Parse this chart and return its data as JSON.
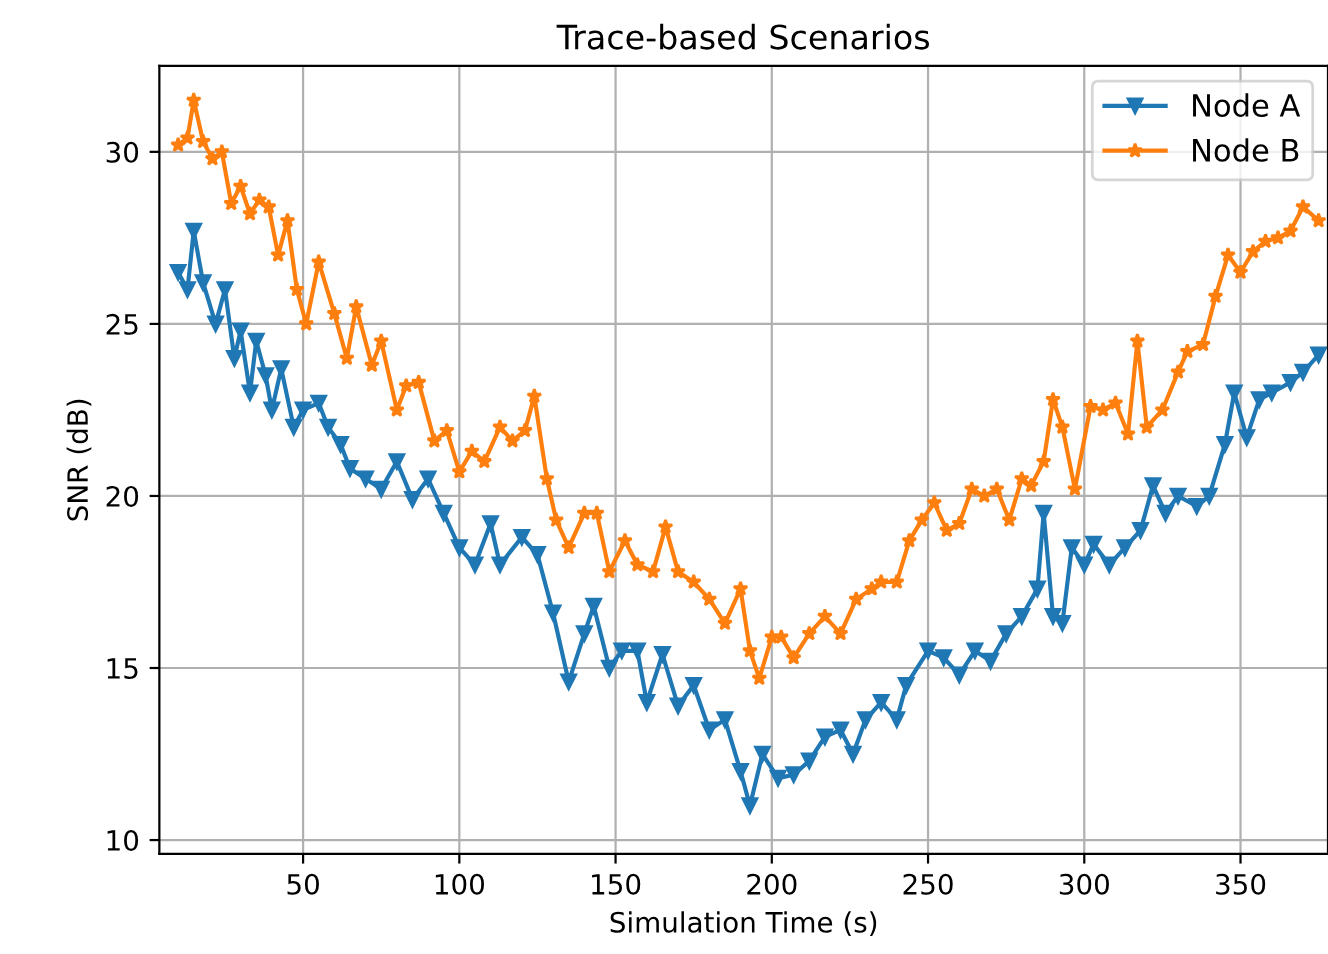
{
  "chart_data": {
    "type": "line",
    "title": "Trace-based Scenarios",
    "xlabel": "Simulation Time (s)",
    "ylabel": "SNR (dB)",
    "xlim": [
      4,
      378
    ],
    "ylim": [
      9.6,
      32.5
    ],
    "xticks": [
      50,
      100,
      150,
      200,
      250,
      300,
      350
    ],
    "yticks": [
      10,
      15,
      20,
      25,
      30
    ],
    "grid": true,
    "legend": "top right",
    "series": [
      {
        "name": "Node A",
        "color": "#1f77b4",
        "marker": "triangle",
        "x": [
          10,
          13,
          15,
          18,
          22,
          25,
          28,
          30,
          33,
          35,
          38,
          40,
          43,
          47,
          50,
          55,
          58,
          62,
          65,
          70,
          75,
          80,
          85,
          90,
          95,
          100,
          105,
          110,
          113,
          120,
          125,
          130,
          135,
          140,
          143,
          148,
          152,
          157,
          160,
          165,
          170,
          175,
          180,
          185,
          190,
          193,
          197,
          202,
          207,
          212,
          217,
          222,
          226,
          230,
          235,
          240,
          243,
          250,
          255,
          260,
          265,
          270,
          275,
          280,
          285,
          287,
          290,
          293,
          296,
          300,
          303,
          308,
          313,
          318,
          322,
          326,
          330,
          336,
          340,
          345,
          348,
          352,
          356,
          360,
          366,
          370,
          375
        ],
        "values": [
          26.5,
          26,
          27.7,
          26.2,
          25,
          26,
          24,
          24.8,
          23,
          24.5,
          23.5,
          22.5,
          23.7,
          22,
          22.5,
          22.7,
          22,
          21.5,
          20.8,
          20.5,
          20.2,
          21.0,
          19.9,
          20.5,
          19.5,
          18.5,
          18.0,
          19.2,
          18.0,
          18.8,
          18.3,
          16.6,
          14.6,
          16.0,
          16.8,
          15.0,
          15.5,
          15.5,
          14.0,
          15.4,
          13.9,
          14.5,
          13.2,
          13.5,
          12.0,
          11.0,
          12.5,
          11.8,
          11.9,
          12.3,
          13.0,
          13.2,
          12.5,
          13.5,
          14.0,
          13.5,
          14.5,
          15.5,
          15.3,
          14.8,
          15.5,
          15.2,
          16.0,
          16.5,
          17.3,
          19.5,
          16.5,
          16.3,
          18.5,
          18.0,
          18.6,
          18.0,
          18.5,
          19.0,
          20.3,
          19.5,
          20.0,
          19.7,
          20.0,
          21.5,
          23.0,
          21.7,
          22.8,
          23.0,
          23.3,
          23.6,
          24.1
        ]
      },
      {
        "name": "Node B",
        "color": "#ff7f0e",
        "marker": "star",
        "x": [
          10,
          13,
          15,
          18,
          21,
          24,
          27,
          30,
          33,
          36,
          39,
          42,
          45,
          48,
          51,
          55,
          60,
          64,
          67,
          72,
          75,
          80,
          83,
          87,
          92,
          96,
          100,
          104,
          108,
          113,
          117,
          121,
          124,
          128,
          131,
          135,
          140,
          144,
          148,
          153,
          157,
          162,
          166,
          170,
          175,
          180,
          185,
          190,
          193,
          196,
          200,
          203,
          207,
          212,
          217,
          222,
          227,
          232,
          235,
          240,
          244,
          248,
          252,
          256,
          260,
          264,
          268,
          272,
          276,
          280,
          283,
          287,
          290,
          293,
          297,
          302,
          306,
          310,
          314,
          317,
          320,
          325,
          330,
          333,
          338,
          342,
          346,
          350,
          354,
          358,
          362,
          366,
          370,
          375
        ],
        "values": [
          30.2,
          30.4,
          31.5,
          30.3,
          29.8,
          30.0,
          28.5,
          29.0,
          28.2,
          28.6,
          28.4,
          27.0,
          28.0,
          26.0,
          25.0,
          26.8,
          25.3,
          24.0,
          25.5,
          23.8,
          24.5,
          22.5,
          23.2,
          23.3,
          21.6,
          21.9,
          20.7,
          21.3,
          21.0,
          22.0,
          21.6,
          21.9,
          22.9,
          20.5,
          19.3,
          18.5,
          19.5,
          19.5,
          17.8,
          18.7,
          18.0,
          17.8,
          19.1,
          17.8,
          17.5,
          17.0,
          16.3,
          17.3,
          15.5,
          14.7,
          15.9,
          15.9,
          15.3,
          16.0,
          16.5,
          16.0,
          17.0,
          17.3,
          17.5,
          17.5,
          18.7,
          19.3,
          19.8,
          19.0,
          19.2,
          20.2,
          20.0,
          20.2,
          19.3,
          20.5,
          20.3,
          21.0,
          22.8,
          22.0,
          20.2,
          22.6,
          22.5,
          22.7,
          21.8,
          24.5,
          22.0,
          22.5,
          23.6,
          24.2,
          24.4,
          25.8,
          27.0,
          26.5,
          27.1,
          27.4,
          27.5,
          27.7,
          28.4,
          28.0
        ]
      }
    ]
  }
}
